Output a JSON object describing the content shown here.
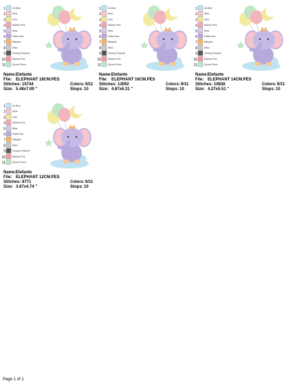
{
  "labels": {
    "name": "Name:",
    "file": "File:",
    "stitches": "Stitches:",
    "colors": "Colors:",
    "size": "Size:",
    "stops": "Stops:"
  },
  "threads": [
    {
      "num": "1",
      "name": "Ice Blue",
      "color": "#bfe3f2"
    },
    {
      "num": "2",
      "name": "Wine",
      "color": "#f4c6cf"
    },
    {
      "num": "3",
      "name": "Gold",
      "color": "#f3e89a"
    },
    {
      "num": "4",
      "name": "Medium Pink",
      "color": "#f3a3b1"
    },
    {
      "num": "5",
      "name": "Wine",
      "color": "#d8c6e8"
    },
    {
      "num": "6",
      "name": "Pastel Lilac",
      "color": "#b7a9dc"
    },
    {
      "num": "7",
      "name": "Marigold",
      "color": "#f6b36a"
    },
    {
      "num": "8",
      "name": "Silver",
      "color": "#c8c8c8"
    },
    {
      "num": "9",
      "name": "Charcoal Shadow",
      "color": "#555555"
    },
    {
      "num": "10",
      "name": "Medium Pink",
      "color": "#f19aa8"
    },
    {
      "num": "11",
      "name": "Spruce Green",
      "color": "#bfe6c7"
    }
  ],
  "designs": [
    {
      "name": "Elefante",
      "file": "ELEPHANT 18CM.PES",
      "stitches": "15744",
      "colors": "9/11",
      "size": "5.48x7.09 \"",
      "stops": "10"
    },
    {
      "name": "Elefante",
      "file": "ELEPHANT 16CM.PES",
      "stitches": "13092",
      "colors": "9/11",
      "size": "4.87x6.31 \"",
      "stops": "10"
    },
    {
      "name": "Elefante",
      "file": "ELEPHANT 14CM.PES",
      "stitches": "10836",
      "colors": "9/11",
      "size": "4.27x5.51 \"",
      "stops": "10"
    },
    {
      "name": "Elefante",
      "file": "ELEPHANT 12CM.PES",
      "stitches": "8771",
      "colors": "9/11",
      "size": "3.67x4.74 \"",
      "stops": "10"
    }
  ],
  "footer": "Page 1 of 1"
}
